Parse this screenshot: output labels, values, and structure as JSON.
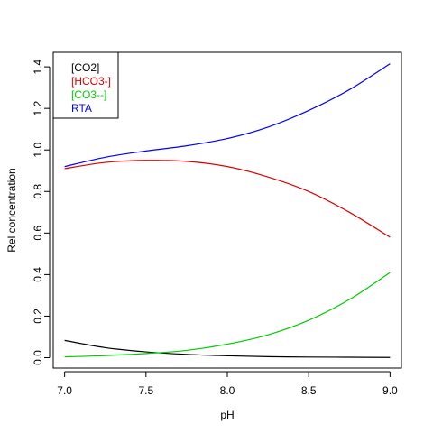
{
  "chart_data": {
    "type": "line",
    "xlabel": "pH",
    "ylabel": "Rel concentration",
    "xlim": [
      6.93,
      9.07
    ],
    "ylim": [
      -0.05,
      1.47
    ],
    "x_ticks": [
      7.0,
      7.5,
      8.0,
      8.5,
      9.0
    ],
    "x_tick_labels": [
      "7.0",
      "7.5",
      "8.0",
      "8.5",
      "9.0"
    ],
    "y_ticks": [
      0.0,
      0.2,
      0.4,
      0.6,
      0.8,
      1.0,
      1.2,
      1.4
    ],
    "y_tick_labels": [
      "0.0",
      "0.2",
      "0.4",
      "0.6",
      "0.8",
      "1.0",
      "1.2",
      "1.4"
    ],
    "grid": false,
    "legend_position": "top-left",
    "x": [
      7.0,
      7.25,
      7.5,
      7.75,
      8.0,
      8.25,
      8.5,
      8.75,
      9.0
    ],
    "series": [
      {
        "name": "[CO2]",
        "color": "#000000",
        "values": [
          0.083,
          0.048,
          0.028,
          0.016,
          0.009,
          0.005,
          0.003,
          0.002,
          0.001
        ]
      },
      {
        "name": "[HCO3-]",
        "color": "#dd0000",
        "values": [
          0.91,
          0.94,
          0.95,
          0.945,
          0.92,
          0.87,
          0.8,
          0.7,
          0.58
        ]
      },
      {
        "name": "[CO3--]",
        "color": "#00cc00",
        "values": [
          0.004,
          0.01,
          0.02,
          0.035,
          0.065,
          0.11,
          0.18,
          0.28,
          0.41
        ]
      },
      {
        "name": "RTA",
        "color": "#0000ff",
        "values": [
          0.92,
          0.965,
          0.995,
          1.02,
          1.055,
          1.11,
          1.19,
          1.29,
          1.415
        ]
      }
    ]
  }
}
